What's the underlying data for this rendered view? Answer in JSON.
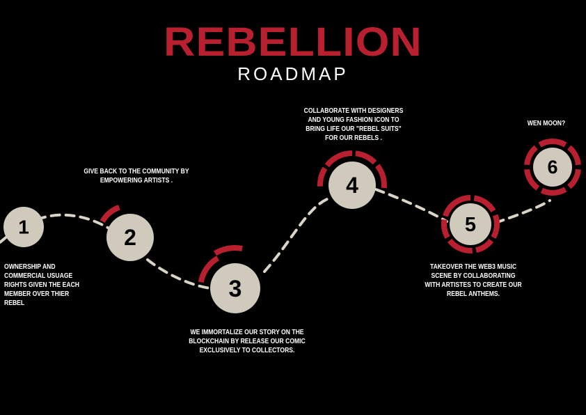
{
  "title": "REBELLION",
  "subtitle": "ROADMAP",
  "colors": {
    "background": "#000000",
    "accent": "#b8202f",
    "node_fill": "#cfcabc",
    "path": "#d9d4c6",
    "text": "#ffffff",
    "number": "#000000"
  },
  "milestones": [
    {
      "number": "1",
      "caption": "OWNERSHIP AND\nCOMMERCIAL USUAGE\nRIGHTS GIVEN THE EACH\nMEMBER OVER THIER\nREBEL"
    },
    {
      "number": "2",
      "caption": "GIVE BACK TO THE COMMUNITY BY\nEMPOWERING ARTISTS ."
    },
    {
      "number": "3",
      "caption": "WE IMMORTALIZE OUR STORY ON THE\nBLOCKCHAIN  BY RELEASE OUR COMIC\nEXCLUSIVELY TO COLLECTORS."
    },
    {
      "number": "4",
      "caption": "COLLABORATE WITH DESIGNERS\nAND YOUNG FASHION  ICON TO\nBRING LIFE OUR \"REBEL SUITS\"\nFOR OUR REBELS ."
    },
    {
      "number": "5",
      "caption": "TAKEOVER THE WEB3 MUSIC\nSCENE BY COLLABORATING\nWITH ARTISTES TO CREATE OUR\nREBEL ANTHEMS."
    },
    {
      "number": "6",
      "caption": "WEN MOON?"
    }
  ]
}
